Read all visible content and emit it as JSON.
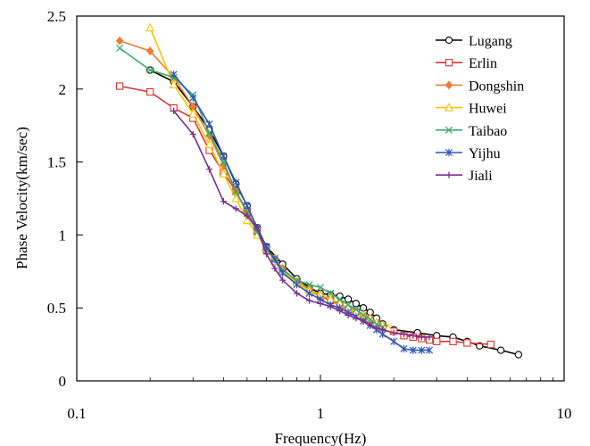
{
  "chart_data": {
    "type": "line",
    "xlabel": "Frequency(Hz)",
    "ylabel": "Phase Velocity(km/sec)",
    "x_scale": "log",
    "xlim": [
      0.1,
      10
    ],
    "ylim": [
      0,
      2.5
    ],
    "x_ticks": [
      {
        "value": 0.1,
        "label": "0.1"
      },
      {
        "value": 1,
        "label": "1"
      },
      {
        "value": 10,
        "label": "10"
      }
    ],
    "y_ticks": [
      {
        "value": 0,
        "label": "0"
      },
      {
        "value": 0.5,
        "label": "0.5"
      },
      {
        "value": 1,
        "label": "1"
      },
      {
        "value": 1.5,
        "label": "1.5"
      },
      {
        "value": 2,
        "label": "2"
      },
      {
        "value": 2.5,
        "label": "2.5"
      }
    ],
    "grid": false,
    "legend_position": "top-right",
    "series": [
      {
        "name": "Lugang",
        "color": "#000000",
        "marker": "circle",
        "x": [
          0.2,
          0.25,
          0.3,
          0.35,
          0.4,
          0.45,
          0.5,
          0.55,
          0.6,
          0.7,
          0.8,
          0.9,
          1.0,
          1.1,
          1.2,
          1.3,
          1.4,
          1.5,
          1.6,
          1.7,
          1.8,
          2.0,
          2.5,
          3.0,
          3.5,
          4.0,
          4.5,
          5.5,
          6.5
        ],
        "y": [
          2.13,
          2.05,
          1.88,
          1.72,
          1.54,
          1.35,
          1.2,
          1.05,
          0.92,
          0.8,
          0.7,
          0.64,
          0.6,
          0.59,
          0.58,
          0.56,
          0.53,
          0.5,
          0.47,
          0.43,
          0.39,
          0.35,
          0.33,
          0.31,
          0.3,
          0.27,
          0.24,
          0.21,
          0.18
        ]
      },
      {
        "name": "Erlin",
        "color": "#d9362f",
        "marker": "square",
        "x": [
          0.15,
          0.2,
          0.25,
          0.3,
          0.35,
          0.4,
          0.45,
          0.5,
          0.55,
          0.6,
          0.65,
          0.7,
          0.8,
          0.9,
          1.0,
          1.1,
          1.2,
          1.3,
          1.4,
          1.5,
          1.6,
          1.7,
          1.8,
          2.0,
          2.2,
          2.4,
          2.6,
          2.8,
          3.0,
          3.5,
          4.0,
          5.0
        ],
        "y": [
          2.02,
          1.98,
          1.87,
          1.8,
          1.58,
          1.43,
          1.3,
          1.16,
          1.03,
          0.9,
          0.82,
          0.75,
          0.67,
          0.62,
          0.58,
          0.55,
          0.52,
          0.49,
          0.47,
          0.44,
          0.42,
          0.39,
          0.37,
          0.34,
          0.31,
          0.3,
          0.29,
          0.28,
          0.27,
          0.27,
          0.26,
          0.25
        ]
      },
      {
        "name": "Dongshin",
        "color": "#ee7d31",
        "marker": "diamond",
        "x": [
          0.15,
          0.2,
          0.25,
          0.3,
          0.35,
          0.4,
          0.45,
          0.5,
          0.55,
          0.6,
          0.65,
          0.7,
          0.8,
          0.9,
          1.0,
          1.1,
          1.2,
          1.3,
          1.4,
          1.5,
          1.6,
          1.7,
          1.8
        ],
        "y": [
          2.33,
          2.26,
          2.08,
          1.88,
          1.68,
          1.48,
          1.3,
          1.15,
          1.02,
          0.91,
          0.84,
          0.77,
          0.68,
          0.63,
          0.59,
          0.56,
          0.53,
          0.5,
          0.47,
          0.44,
          0.41,
          0.38,
          0.36
        ]
      },
      {
        "name": "Huwei",
        "color": "#f5c400",
        "marker": "triangle",
        "x": [
          0.2,
          0.25,
          0.3,
          0.35,
          0.4,
          0.45,
          0.5,
          0.55,
          0.6,
          0.65,
          0.7,
          0.8,
          0.9,
          1.0,
          1.1,
          1.2,
          1.3,
          1.4,
          1.5,
          1.6,
          1.7,
          1.8,
          1.9
        ],
        "y": [
          2.42,
          2.03,
          1.83,
          1.62,
          1.42,
          1.25,
          1.1,
          1.0,
          0.9,
          0.82,
          0.75,
          0.67,
          0.62,
          0.59,
          0.56,
          0.53,
          0.5,
          0.47,
          0.45,
          0.43,
          0.4,
          0.38,
          0.36
        ]
      },
      {
        "name": "Taibao",
        "color": "#3daa6e",
        "marker": "x",
        "x": [
          0.15,
          0.2,
          0.25,
          0.3,
          0.35,
          0.4,
          0.45,
          0.5,
          0.55,
          0.6,
          0.65,
          0.7,
          0.8,
          0.9,
          1.0,
          1.1,
          1.2,
          1.3,
          1.4,
          1.5,
          1.6,
          1.7,
          1.8
        ],
        "y": [
          2.28,
          2.13,
          2.08,
          1.96,
          1.7,
          1.5,
          1.3,
          1.15,
          1.02,
          0.9,
          0.84,
          0.76,
          0.69,
          0.66,
          0.64,
          0.6,
          0.56,
          0.52,
          0.49,
          0.45,
          0.42,
          0.39,
          0.37
        ]
      },
      {
        "name": "Yijhu",
        "color": "#2f56b8",
        "marker": "asterisk",
        "x": [
          0.25,
          0.3,
          0.35,
          0.4,
          0.45,
          0.5,
          0.55,
          0.6,
          0.65,
          0.7,
          0.8,
          0.9,
          1.0,
          1.1,
          1.2,
          1.3,
          1.4,
          1.5,
          1.6,
          1.7,
          1.8,
          2.0,
          2.2,
          2.4,
          2.6,
          2.8
        ],
        "y": [
          2.1,
          1.94,
          1.76,
          1.54,
          1.36,
          1.2,
          1.05,
          0.92,
          0.83,
          0.74,
          0.66,
          0.6,
          0.56,
          0.52,
          0.5,
          0.47,
          0.44,
          0.41,
          0.38,
          0.35,
          0.32,
          0.27,
          0.22,
          0.21,
          0.21,
          0.21
        ]
      },
      {
        "name": "Jiali",
        "color": "#7b2d8f",
        "marker": "plus",
        "x": [
          0.25,
          0.3,
          0.35,
          0.4,
          0.45,
          0.5,
          0.55,
          0.6,
          0.65,
          0.7,
          0.8,
          0.9,
          1.0,
          1.1,
          1.2,
          1.3,
          1.4,
          1.5,
          1.6,
          1.7,
          1.8,
          2.0,
          2.2,
          2.4,
          2.6,
          2.8
        ],
        "y": [
          1.85,
          1.69,
          1.45,
          1.23,
          1.18,
          1.13,
          1.05,
          0.87,
          0.77,
          0.69,
          0.6,
          0.55,
          0.53,
          0.51,
          0.48,
          0.45,
          0.43,
          0.41,
          0.38,
          0.36,
          0.35,
          0.33,
          0.32,
          0.31,
          0.3,
          0.3
        ]
      }
    ]
  }
}
